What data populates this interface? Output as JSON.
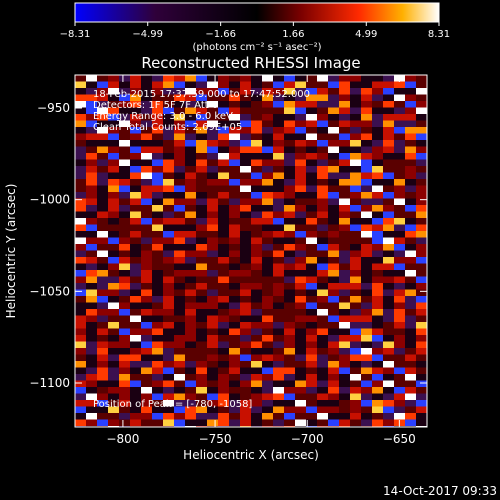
{
  "chart_data": {
    "type": "heatmap",
    "title": "Reconstructed RHESSI Image",
    "xlabel": "Heliocentric X (arcsec)",
    "ylabel": "Heliocentric Y (arcsec)",
    "xlim": [
      -826,
      -635
    ],
    "ylim": [
      -1124,
      -932
    ],
    "x_ticks": [
      -800,
      -750,
      -700,
      -650
    ],
    "y_ticks": [
      -950,
      -1000,
      -1050,
      -1100
    ],
    "x_tick_labels": [
      "−800",
      "−750",
      "−700",
      "−650"
    ],
    "y_tick_labels": [
      "−950",
      "−1000",
      "−1050",
      "−1100"
    ],
    "colorbar": {
      "min": -8.31,
      "max": 8.31,
      "ticks": [
        -8.31,
        -4.99,
        -1.66,
        1.66,
        4.99,
        8.31
      ],
      "tick_labels": [
        "−8.31",
        "−4.99",
        "−1.66",
        "1.66",
        "4.99",
        "8.31"
      ],
      "label": "(photons cm⁻² s⁻¹ asec⁻²)",
      "colormap": "rhessi-ct5"
    },
    "grid": false,
    "annotations": [
      "18-Feb-2015 17:37:59.000 to 17:47:52.000",
      "Detectors: 1F 5F 7F  Att 0",
      "Energy Range: 3.0 - 6.0 keV",
      "Clean    Total Counts: 2.69E+05",
      "Position of Peak = [-780, -1058]"
    ],
    "pixel_pattern": "oscillatory checkerboard artifact; no coherent source"
  },
  "footer": {
    "date": "14-Oct-2017 09:33"
  },
  "colors": {
    "background": "#000000",
    "text": "#ffffff"
  }
}
